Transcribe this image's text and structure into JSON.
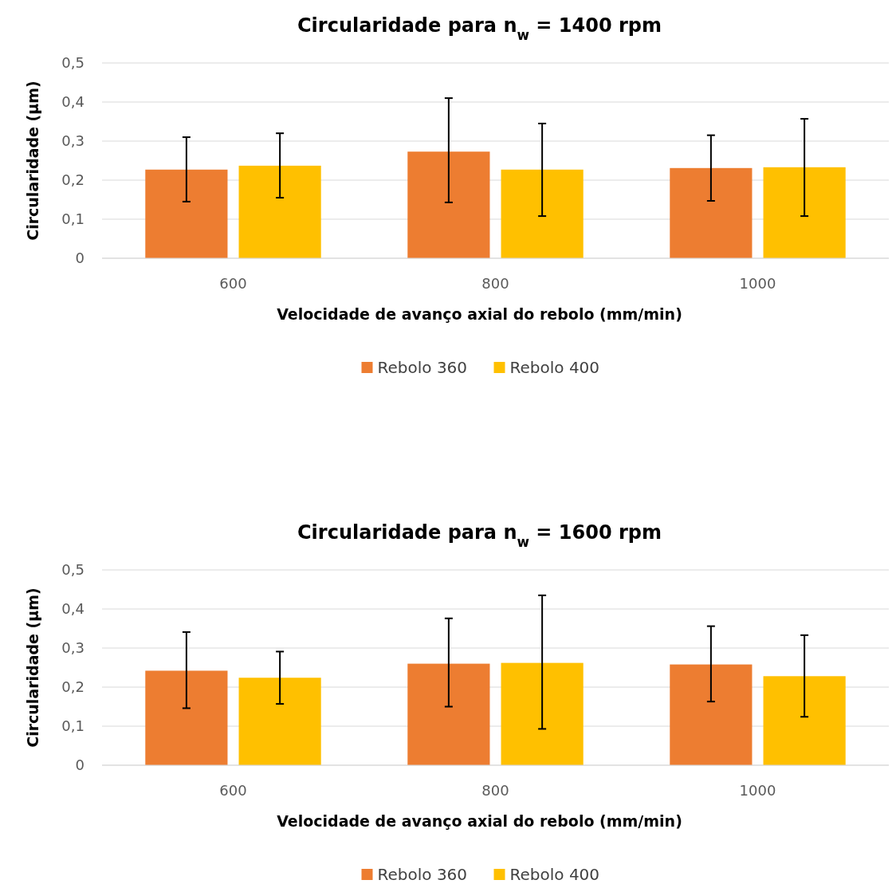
{
  "chart_data": [
    {
      "type": "bar",
      "title": "Circularidade para n$_{w}$ = 1400 rpm",
      "xlabel": "Velocidade de avanço axial do rebolo (mm/min)",
      "ylabel": "Circularidade (µm)",
      "categories": [
        "600",
        "800",
        "1000"
      ],
      "series": [
        {
          "name": "Rebolo 360",
          "color": "#ed7d31",
          "values": [
            0.227,
            0.273,
            0.231
          ],
          "errors": [
            [
              0.145,
              0.31
            ],
            [
              0.143,
              0.41
            ],
            [
              0.147,
              0.315
            ]
          ]
        },
        {
          "name": "Rebolo 400",
          "color": "#ffc000",
          "values": [
            0.237,
            0.227,
            0.233
          ],
          "errors": [
            [
              0.155,
              0.32
            ],
            [
              0.108,
              0.345
            ],
            [
              0.108,
              0.357
            ]
          ]
        }
      ],
      "ylim": [
        0,
        0.5
      ],
      "yticks": [
        0,
        {
          "value": 0.1,
          "label": "0,1"
        },
        {
          "value": 0.2,
          "label": "0,2"
        },
        {
          "value": 0.3,
          "label": "0,3"
        },
        {
          "value": 0.4,
          "label": "0,4"
        },
        {
          "value": 0.5,
          "label": "0,5"
        }
      ],
      "grid": "y",
      "legend": "bottom"
    },
    {
      "type": "bar",
      "title": "Circularidade para n$_{w}$ = 1600 rpm",
      "xlabel": "Velocidade de avanço axial do rebolo (mm/min)",
      "ylabel": "Circularidade (µm)",
      "categories": [
        "600",
        "800",
        "1000"
      ],
      "series": [
        {
          "name": "Rebolo 360",
          "color": "#ed7d31",
          "values": [
            0.242,
            0.26,
            0.258
          ],
          "errors": [
            [
              0.146,
              0.341
            ],
            [
              0.15,
              0.376
            ],
            [
              0.163,
              0.356
            ]
          ]
        },
        {
          "name": "Rebolo 400",
          "color": "#ffc000",
          "values": [
            0.224,
            0.262,
            0.228
          ],
          "errors": [
            [
              0.157,
              0.291
            ],
            [
              0.093,
              0.435
            ],
            [
              0.124,
              0.333
            ]
          ]
        }
      ],
      "ylim": [
        0,
        0.5
      ],
      "yticks": [
        0,
        {
          "value": 0.1,
          "label": "0,1"
        },
        {
          "value": 0.2,
          "label": "0,2"
        },
        {
          "value": 0.3,
          "label": "0,3"
        },
        {
          "value": 0.4,
          "label": "0,4"
        },
        {
          "value": 0.5,
          "label": "0,5"
        }
      ],
      "grid": "y",
      "legend": "bottom"
    }
  ]
}
